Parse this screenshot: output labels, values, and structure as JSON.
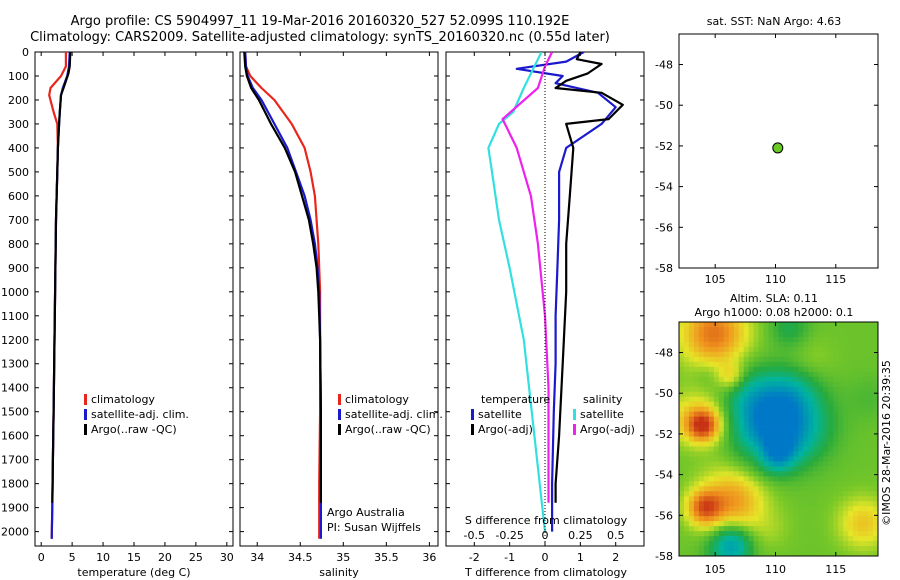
{
  "title_line1": "Argo profile: CS 5904997_11 19-Mar-2016 20160320_527 52.099S 110.192E",
  "title_line2": "Climatology: CARS2009. Satellite-adjusted climatology: synTS_20160320.nc (0.55d later)",
  "colors": {
    "climatology": "#e8261c",
    "satellite_adj": "#1a1acc",
    "argo": "#000000",
    "sat_salinity": "#33e0e0",
    "argo_salinity": "#ee22ee",
    "map_dot": "#66cc22"
  },
  "chart_data": [
    {
      "type": "line",
      "id": "temperature",
      "xlabel": "temperature (deg C)",
      "xlim": [
        -1,
        31
      ],
      "xticks": [
        0,
        5,
        10,
        15,
        20,
        25,
        30
      ],
      "ylim": [
        0,
        2060
      ],
      "yticks": [
        0,
        100,
        200,
        300,
        400,
        500,
        600,
        700,
        800,
        900,
        1000,
        1100,
        1200,
        1300,
        1400,
        1500,
        1600,
        1700,
        1800,
        1900,
        2000
      ],
      "legend": [
        "climatology",
        "satellite-adj. clim.",
        "Argo(..raw -QC)"
      ],
      "series": [
        {
          "name": "climatology",
          "color": "#e8261c",
          "x": [
            4.0,
            4.0,
            3.2,
            1.5,
            1.3,
            2.0,
            2.6,
            2.7,
            2.6,
            2.4,
            2.3,
            2.2,
            2.1,
            2.0,
            1.9,
            1.8,
            1.7
          ],
          "y": [
            0,
            60,
            100,
            150,
            180,
            250,
            300,
            400,
            500,
            700,
            900,
            1100,
            1300,
            1500,
            1700,
            1900,
            2030
          ]
        },
        {
          "name": "satellite-adj. clim.",
          "color": "#1a1acc",
          "x": [
            4.6,
            4.5,
            4.2,
            3.5,
            3.2,
            3.0,
            2.9,
            2.7,
            2.6,
            2.4,
            2.3,
            2.2,
            2.1,
            2.0,
            1.9,
            1.8,
            1.7
          ],
          "y": [
            0,
            60,
            100,
            150,
            180,
            250,
            300,
            400,
            500,
            700,
            900,
            1100,
            1300,
            1500,
            1700,
            1900,
            2030
          ]
        },
        {
          "name": "Argo(..raw -QC)",
          "color": "#000000",
          "x": [
            4.7,
            4.6,
            4.4,
            3.6,
            3.2,
            3.0,
            2.9,
            2.7,
            2.6,
            2.4,
            2.3,
            2.2,
            2.1,
            2.0,
            1.9,
            1.8
          ],
          "y": [
            0,
            60,
            90,
            150,
            180,
            250,
            300,
            400,
            500,
            700,
            900,
            1100,
            1300,
            1500,
            1700,
            1880
          ]
        }
      ]
    },
    {
      "type": "line",
      "id": "salinity",
      "xlabel": "salinity",
      "xlim": [
        33.8,
        36.1
      ],
      "xticks": [
        34,
        34.5,
        35,
        35.5,
        36
      ],
      "ylim": [
        0,
        2060
      ],
      "legend": [
        "climatology",
        "satellite-adj. clim.",
        "Argo(..raw -QC)"
      ],
      "annotation": [
        "Argo Australia",
        "PI: Susan Wijffels"
      ],
      "series": [
        {
          "name": "climatology",
          "color": "#e8261c",
          "x": [
            33.86,
            33.87,
            33.92,
            34.05,
            34.2,
            34.4,
            34.55,
            34.62,
            34.67,
            34.69,
            34.71,
            34.72,
            34.73,
            34.73,
            34.73,
            34.72,
            34.72
          ],
          "y": [
            0,
            60,
            100,
            150,
            200,
            300,
            400,
            500,
            600,
            700,
            800,
            900,
            1000,
            1200,
            1500,
            1800,
            2030
          ]
        },
        {
          "name": "satellite-adj. clim.",
          "color": "#1a1acc",
          "x": [
            33.86,
            33.87,
            33.89,
            33.95,
            34.05,
            34.2,
            34.35,
            34.45,
            34.55,
            34.62,
            34.67,
            34.7,
            34.72,
            34.73,
            34.74,
            34.74,
            34.74
          ],
          "y": [
            0,
            60,
            100,
            150,
            200,
            300,
            400,
            500,
            600,
            700,
            800,
            900,
            1000,
            1200,
            1500,
            1800,
            2030
          ]
        },
        {
          "name": "Argo(..raw -QC)",
          "color": "#000000",
          "x": [
            33.85,
            33.86,
            33.88,
            33.93,
            34.02,
            34.16,
            34.32,
            34.44,
            34.52,
            34.6,
            34.65,
            34.69,
            34.71,
            34.73,
            34.74,
            34.74
          ],
          "y": [
            0,
            60,
            100,
            150,
            200,
            300,
            400,
            500,
            600,
            700,
            800,
            900,
            1000,
            1200,
            1500,
            1880
          ]
        }
      ]
    },
    {
      "type": "line",
      "id": "differences",
      "xlabel": "T difference from climatology",
      "xlabel_top": "S difference from climatology",
      "xlim": [
        -2.8,
        2.8
      ],
      "xticks": [
        -2,
        -1,
        0,
        1,
        2
      ],
      "sticks_labels": [
        "-0.5",
        "-0.25",
        "0",
        "0.25",
        "0.5"
      ],
      "sticks": [
        -2,
        -1,
        0,
        1,
        2
      ],
      "legend": [
        [
          "temperature",
          "satellite",
          "Argo(-adj)"
        ],
        [
          "salinity",
          "satellite",
          "Argo(-adj)"
        ]
      ],
      "series": [
        {
          "name": "satellite",
          "color": "#1a1acc",
          "x": [
            1.1,
            0.6,
            -0.8,
            0.5,
            0.3,
            1.5,
            2.0,
            1.6,
            0.6,
            0.4,
            0.4,
            0.35,
            0.3,
            0.3,
            0.25,
            0.2,
            0.2
          ],
          "y": [
            0,
            40,
            70,
            100,
            130,
            170,
            230,
            300,
            400,
            500,
            700,
            900,
            1100,
            1300,
            1500,
            1800,
            2000
          ]
        },
        {
          "name": "Argo(-adj)",
          "color": "#000000",
          "x": [
            1.0,
            0.9,
            1.6,
            1.2,
            0.6,
            0.3,
            1.6,
            2.2,
            1.8,
            0.6,
            0.8,
            0.7,
            0.6,
            0.6,
            0.5,
            0.4,
            0.3,
            0.3
          ],
          "y": [
            0,
            30,
            50,
            90,
            120,
            150,
            170,
            220,
            280,
            300,
            400,
            600,
            800,
            1000,
            1300,
            1600,
            1800,
            1880
          ]
        },
        {
          "name": "satellite",
          "color": "#33e0e0",
          "x": [
            -0.1,
            -0.3,
            -0.6,
            -0.9,
            -1.3,
            -1.6,
            -1.5,
            -1.3,
            -1.0,
            -0.6,
            -0.3,
            0.0
          ],
          "y": [
            0,
            60,
            150,
            250,
            300,
            400,
            500,
            700,
            900,
            1200,
            1600,
            2000
          ]
        },
        {
          "name": "Argo(-adj)",
          "color": "#ee22ee",
          "x": [
            0.2,
            0.0,
            -0.2,
            -1.2,
            -0.8,
            -0.4,
            -0.2,
            0.0,
            0.1,
            0.1
          ],
          "y": [
            0,
            60,
            150,
            280,
            400,
            600,
            800,
            1100,
            1400,
            1880
          ]
        }
      ]
    },
    {
      "type": "scatter",
      "id": "sst_map",
      "title": "sat. SST: NaN  Argo: 4.63",
      "xlim": [
        102,
        118.5
      ],
      "ylim": [
        -58,
        -46.5
      ],
      "xticks": [
        105,
        110,
        115
      ],
      "yticks": [
        -48,
        -50,
        -52,
        -54,
        -56,
        -58
      ],
      "points": [
        {
          "x": 110.192,
          "y": -52.099
        }
      ]
    },
    {
      "type": "heatmap",
      "id": "sla_map",
      "title_line1": "Altim. SLA: 0.11",
      "title_line2": "Argo h1000: 0.08 h2000: 0.1",
      "xlim": [
        102,
        118.5
      ],
      "ylim": [
        -58,
        -46.5
      ],
      "xticks": [
        105,
        110,
        115
      ],
      "yticks": [
        -48,
        -50,
        -52,
        -54,
        -56,
        -58
      ],
      "side_label": "©IMOS 28-Mar-2016 20:39:35"
    }
  ]
}
